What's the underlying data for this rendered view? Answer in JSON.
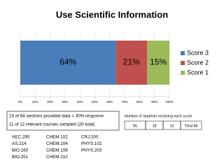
{
  "chart_data": {
    "type": "bar",
    "orientation": "horizontal",
    "stacked": true,
    "title": "Use Scientific Information",
    "series": [
      {
        "name": "Score 3",
        "color": "#4a7ebb",
        "values": [
          64
        ],
        "value_labels": [
          "64%"
        ]
      },
      {
        "name": "Score 2",
        "color": "#c0504d",
        "values": [
          21
        ],
        "value_labels": [
          "21%"
        ]
      },
      {
        "name": "Score 1",
        "color": "#9bbb59",
        "values": [
          15
        ],
        "value_labels": [
          "15%"
        ]
      }
    ],
    "xlim": [
      0,
      100
    ],
    "xticks": [
      {
        "value": 0,
        "label": "0%"
      },
      {
        "value": 10,
        "label": "10%"
      },
      {
        "value": 20,
        "label": "20%"
      },
      {
        "value": 30,
        "label": "30%"
      },
      {
        "value": 40,
        "label": "40%"
      },
      {
        "value": 50,
        "label": "50%"
      },
      {
        "value": 60,
        "label": "60%"
      },
      {
        "value": 70,
        "label": "70%"
      },
      {
        "value": 80,
        "label": "80%"
      },
      {
        "value": 90,
        "label": "90%"
      },
      {
        "value": 100,
        "label": "100%"
      }
    ],
    "grid": true,
    "legend": "right"
  },
  "notes": [
    "19 of 64 sections provided data = 30% response",
    "11 of 12 relevant courses sampled (20 total)"
  ],
  "score_table": {
    "title": "Number of students receiving each score",
    "cells": [
      55,
      18,
      13,
      "Total 86"
    ]
  },
  "courses": [
    [
      "AEC.290",
      "AS.214",
      "BIO.160",
      "BIO.251"
    ],
    [
      "CHEM.102",
      "CHEM.104",
      "CHEM.108",
      "CHEM.210"
    ],
    [
      "CRJ.200",
      "PHYS.102",
      "PHYS.203"
    ]
  ]
}
